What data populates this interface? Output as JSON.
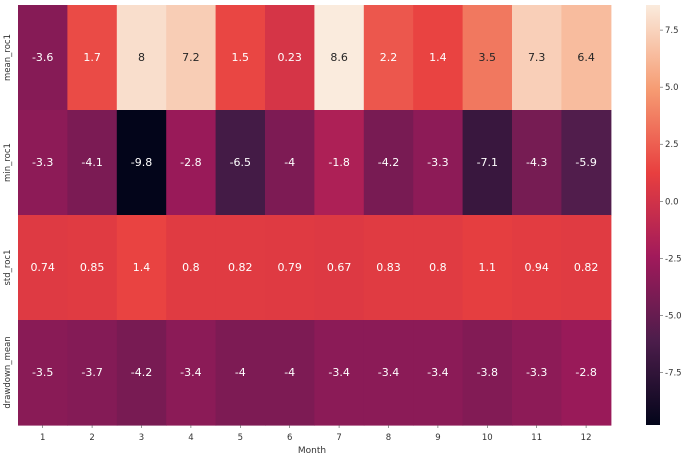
{
  "chart_data": {
    "type": "heatmap",
    "xlabel": "Month",
    "ylabel": "",
    "x_categories": [
      "1",
      "2",
      "3",
      "4",
      "5",
      "6",
      "7",
      "8",
      "9",
      "10",
      "11",
      "12"
    ],
    "y_categories": [
      "mean_roc1",
      "min_roc1",
      "std_roc1",
      "drawdown_mean"
    ],
    "cell_labels": [
      [
        "-3.6",
        "1.7",
        "8",
        "7.2",
        "1.5",
        "0.23",
        "8.6",
        "2.2",
        "1.4",
        "3.5",
        "7.3",
        "6.4"
      ],
      [
        "-3.3",
        "-4.1",
        "-9.8",
        "-2.8",
        "-6.5",
        "-4",
        "-1.8",
        "-4.2",
        "-3.3",
        "-7.1",
        "-4.3",
        "-5.9"
      ],
      [
        "0.74",
        "0.85",
        "1.4",
        "0.8",
        "0.82",
        "0.79",
        "0.67",
        "0.83",
        "0.8",
        "1.1",
        "0.94",
        "0.82"
      ],
      [
        "-3.5",
        "-3.7",
        "-4.2",
        "-3.4",
        "-4",
        "-4",
        "-3.4",
        "-3.4",
        "-3.4",
        "-3.8",
        "-3.3",
        "-2.8"
      ]
    ],
    "values": [
      [
        -3.6,
        1.7,
        8,
        7.2,
        1.5,
        0.23,
        8.6,
        2.2,
        1.4,
        3.5,
        7.3,
        6.4
      ],
      [
        -3.3,
        -4.1,
        -9.8,
        -2.8,
        -6.5,
        -4,
        -1.8,
        -4.2,
        -3.3,
        -7.1,
        -4.3,
        -5.9
      ],
      [
        0.74,
        0.85,
        1.4,
        0.8,
        0.82,
        0.79,
        0.67,
        0.83,
        0.8,
        1.1,
        0.94,
        0.82
      ],
      [
        -3.5,
        -3.7,
        -4.2,
        -3.4,
        -4,
        -4,
        -3.4,
        -3.4,
        -3.4,
        -3.8,
        -3.3,
        -2.8
      ]
    ],
    "colorbar": {
      "vmin": -9.8,
      "vmax": 8.6,
      "ticks": [
        -7.5,
        -5.0,
        -2.5,
        0.0,
        2.5,
        5.0,
        7.5
      ],
      "tick_labels": [
        "-7.5",
        "-5.0",
        "-2.5",
        "0.0",
        "2.5",
        "5.0",
        "7.5"
      ],
      "colormap": "rocket",
      "colors": [
        "#03051a",
        "#4c1d4b",
        "#a11a5b",
        "#e83f3f",
        "#f69c73",
        "#faebdd"
      ]
    }
  }
}
